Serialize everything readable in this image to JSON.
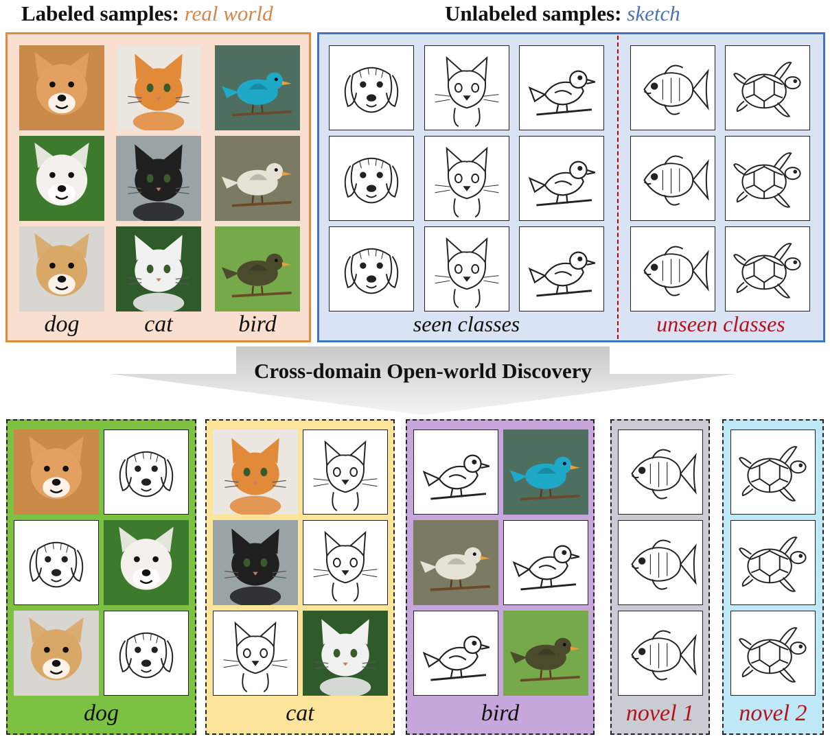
{
  "labeled": {
    "title": "Labeled samples:",
    "domain": "real world",
    "domain_color": "#d4864a",
    "border_color": "#e08a3c",
    "bg_color": "#f9dfcf",
    "class_labels": [
      "dog",
      "cat",
      "bird"
    ]
  },
  "unlabeled": {
    "title": "Unlabeled samples:",
    "domain": "sketch",
    "domain_color": "#4a72b0",
    "border_color": "#4472c4",
    "bg_color": "#dae3f3",
    "seen_label": "seen classes",
    "unseen_label": "unseen classes",
    "divider_color": "#c00000"
  },
  "process": {
    "label": "Cross-domain Open-world Discovery"
  },
  "clusters": [
    {
      "label": "dog",
      "bg": "#7cc141",
      "label_color": "#111111"
    },
    {
      "label": "cat",
      "bg": "#fde49b",
      "label_color": "#111111"
    },
    {
      "label": "bird",
      "bg": "#c6a6db",
      "label_color": "#111111"
    },
    {
      "label": "novel 1",
      "bg": "#c9cdd3",
      "label_color": "#b5121b"
    },
    {
      "label": "novel 2",
      "bg": "#bfe8f7",
      "label_color": "#b5121b"
    }
  ],
  "icons": [
    "dog-photo",
    "cat-photo",
    "bird-photo",
    "dog-sketch",
    "cat-sketch",
    "bird-sketch",
    "fish-sketch",
    "turtle-sketch"
  ]
}
